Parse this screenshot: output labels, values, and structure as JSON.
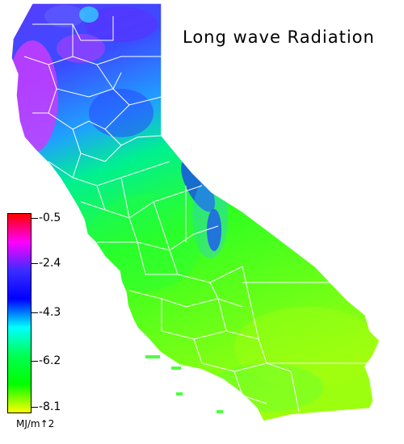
{
  "map": {
    "title": "Long wave Radiation",
    "legend": {
      "ticks": [
        "-0.5",
        "-2.4",
        "-4.3",
        "-6.2",
        "-8.1"
      ],
      "unit": "MJ/m↑2",
      "colors": [
        "#ff0000",
        "#ff00ff",
        "#3a2cff",
        "#0000ff",
        "#00ffff",
        "#00ff50",
        "#00ff00",
        "#ffff00"
      ]
    },
    "region_colors": {
      "north": "#3a2cff",
      "northwest": "#c83cff",
      "central": "#00ff70",
      "south": "#7fff00",
      "sierra": "#2020ff",
      "boundaries": "#ffffff"
    }
  }
}
